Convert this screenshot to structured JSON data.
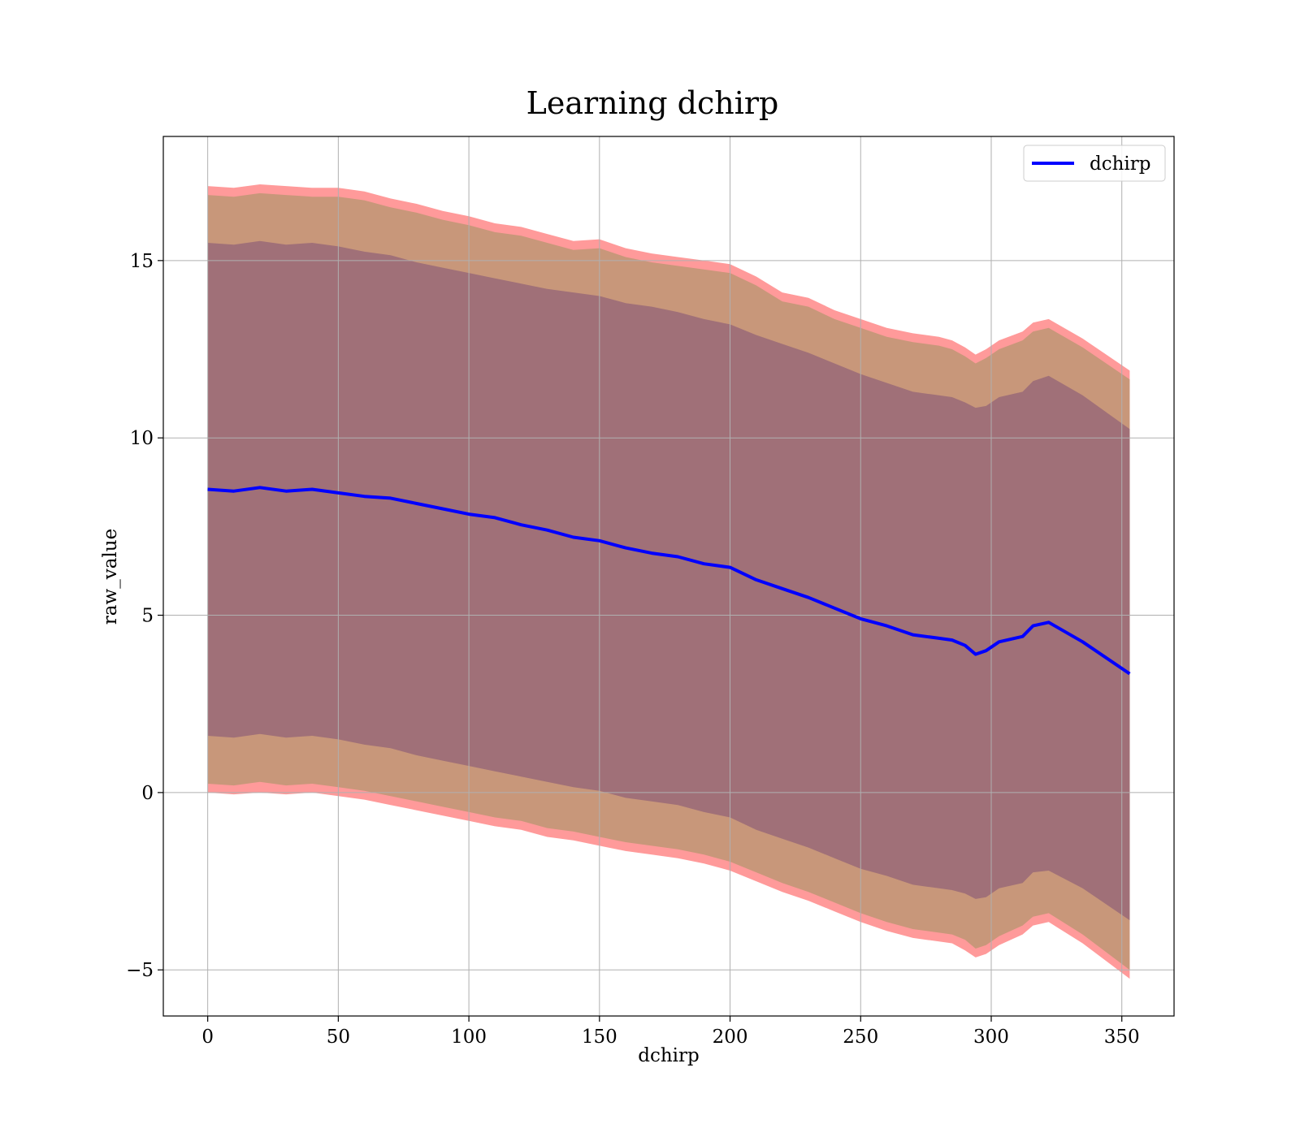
{
  "chart_data": {
    "type": "area",
    "title": "Learning dchirp",
    "xlabel": "dchirp",
    "ylabel": "raw_value",
    "xlim": [
      -17,
      370
    ],
    "ylim": [
      -6.3,
      18.5
    ],
    "x_ticks": [
      0,
      50,
      100,
      150,
      200,
      250,
      300,
      350
    ],
    "y_ticks": [
      -5,
      0,
      5,
      10,
      15
    ],
    "y_tick_labels": [
      "−5",
      "0",
      "5",
      "10",
      "15"
    ],
    "grid": true,
    "legend": {
      "position": "top-right",
      "entries": [
        "dchirp"
      ]
    },
    "colors": {
      "line": "#0000ff",
      "band_outer": "#ff9a9a",
      "band_middle": "#c8977a",
      "band_inner": "#a07078"
    },
    "x": [
      0,
      10,
      20,
      30,
      40,
      50,
      60,
      70,
      80,
      90,
      100,
      110,
      120,
      130,
      140,
      150,
      160,
      170,
      180,
      190,
      200,
      210,
      220,
      230,
      240,
      250,
      260,
      270,
      280,
      285,
      290,
      294,
      298,
      303,
      312,
      316,
      322,
      335,
      353
    ],
    "series": [
      {
        "name": "dchirp",
        "values": [
          8.55,
          8.5,
          8.6,
          8.5,
          8.55,
          8.45,
          8.35,
          8.3,
          8.15,
          8.0,
          7.85,
          7.75,
          7.55,
          7.4,
          7.2,
          7.1,
          6.9,
          6.75,
          6.65,
          6.45,
          6.35,
          6.0,
          5.75,
          5.5,
          5.2,
          4.9,
          4.7,
          4.45,
          4.35,
          4.3,
          4.15,
          3.9,
          4.0,
          4.25,
          4.4,
          4.7,
          4.8,
          4.25,
          3.35
        ]
      }
    ],
    "bands": [
      {
        "level": "outer",
        "lower": [
          0.0,
          -0.05,
          0.0,
          -0.05,
          0.0,
          -0.1,
          -0.2,
          -0.35,
          -0.5,
          -0.65,
          -0.8,
          -0.95,
          -1.05,
          -1.25,
          -1.35,
          -1.5,
          -1.65,
          -1.75,
          -1.85,
          -2.0,
          -2.2,
          -2.5,
          -2.8,
          -3.05,
          -3.35,
          -3.65,
          -3.9,
          -4.1,
          -4.2,
          -4.25,
          -4.45,
          -4.65,
          -4.55,
          -4.3,
          -4.0,
          -3.75,
          -3.65,
          -4.25,
          -5.25
        ],
        "upper": [
          17.1,
          17.05,
          17.15,
          17.1,
          17.05,
          17.05,
          16.95,
          16.75,
          16.6,
          16.4,
          16.25,
          16.05,
          15.95,
          15.75,
          15.55,
          15.6,
          15.35,
          15.2,
          15.1,
          15.0,
          14.9,
          14.55,
          14.1,
          13.95,
          13.6,
          13.35,
          13.1,
          12.95,
          12.85,
          12.75,
          12.55,
          12.35,
          12.5,
          12.75,
          13.0,
          13.25,
          13.35,
          12.8,
          11.9
        ]
      },
      {
        "level": "middle",
        "lower": [
          0.25,
          0.2,
          0.3,
          0.2,
          0.25,
          0.15,
          0.05,
          -0.1,
          -0.25,
          -0.4,
          -0.55,
          -0.7,
          -0.8,
          -1.0,
          -1.1,
          -1.25,
          -1.4,
          -1.5,
          -1.6,
          -1.75,
          -1.95,
          -2.25,
          -2.55,
          -2.8,
          -3.1,
          -3.4,
          -3.65,
          -3.85,
          -3.95,
          -4.0,
          -4.15,
          -4.4,
          -4.3,
          -4.05,
          -3.75,
          -3.5,
          -3.4,
          -4.0,
          -5.0
        ],
        "upper": [
          16.85,
          16.8,
          16.9,
          16.85,
          16.8,
          16.8,
          16.7,
          16.5,
          16.35,
          16.15,
          16.0,
          15.8,
          15.7,
          15.5,
          15.3,
          15.35,
          15.1,
          14.95,
          14.85,
          14.75,
          14.65,
          14.3,
          13.85,
          13.7,
          13.35,
          13.1,
          12.85,
          12.7,
          12.6,
          12.5,
          12.3,
          12.1,
          12.25,
          12.5,
          12.75,
          13.0,
          13.1,
          12.55,
          11.65
        ]
      },
      {
        "level": "inner",
        "lower": [
          1.6,
          1.55,
          1.65,
          1.55,
          1.6,
          1.5,
          1.35,
          1.25,
          1.05,
          0.9,
          0.75,
          0.6,
          0.45,
          0.3,
          0.15,
          0.05,
          -0.15,
          -0.25,
          -0.35,
          -0.55,
          -0.7,
          -1.05,
          -1.3,
          -1.55,
          -1.85,
          -2.15,
          -2.35,
          -2.6,
          -2.7,
          -2.75,
          -2.85,
          -3.0,
          -2.95,
          -2.7,
          -2.55,
          -2.25,
          -2.2,
          -2.7,
          -3.6
        ],
        "upper": [
          15.5,
          15.45,
          15.55,
          15.45,
          15.5,
          15.4,
          15.25,
          15.15,
          14.95,
          14.8,
          14.65,
          14.5,
          14.35,
          14.2,
          14.1,
          14.0,
          13.8,
          13.7,
          13.55,
          13.35,
          13.2,
          12.9,
          12.65,
          12.4,
          12.1,
          11.8,
          11.55,
          11.3,
          11.2,
          11.15,
          11.0,
          10.85,
          10.9,
          11.15,
          11.3,
          11.6,
          11.75,
          11.2,
          10.25
        ]
      }
    ]
  }
}
